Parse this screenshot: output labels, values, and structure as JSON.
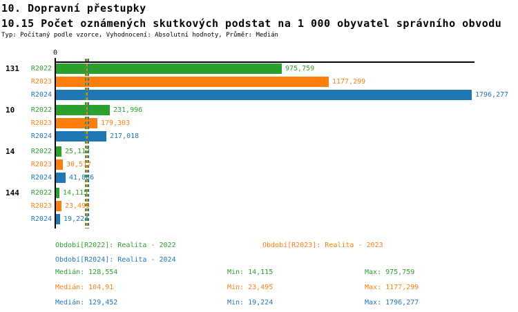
{
  "header": {
    "title": "10. Dopravní přestupky",
    "subtitle": "10.15 Počet oznámených skutkových podstat na 1 000 obyvatel správního obvodu",
    "meta": "Typ: Počítaný podle vzorce, Vyhodnocení: Absolutní hodnoty, Průměr: Medián"
  },
  "colors": {
    "r2022": "#2ca02c",
    "r2023": "#ff7f0e",
    "r2024": "#1f77b4",
    "axis": "#000000"
  },
  "chart_data": {
    "type": "bar",
    "orientation": "horizontal",
    "categories": [
      "131",
      "10",
      "14",
      "144"
    ],
    "series": [
      {
        "name": "R2022",
        "color": "#2ca02c",
        "values": [
          975.759,
          231.996,
          25.112,
          14.115
        ],
        "labels": [
          "975,759",
          "231,996",
          "25,112",
          "14,115"
        ]
      },
      {
        "name": "R2023",
        "color": "#ff7f0e",
        "values": [
          1177.299,
          179.303,
          30.517,
          23.495
        ],
        "labels": [
          "1177,299",
          "179,303",
          "30,517",
          "23,495"
        ]
      },
      {
        "name": "R2024",
        "color": "#1f77b4",
        "values": [
          1796.277,
          217.018,
          41.886,
          19.224
        ],
        "labels": [
          "1796,277",
          "217,018",
          "41,886",
          "19,224"
        ]
      }
    ],
    "x_axis": {
      "zero_label": "0",
      "min": 0,
      "max": 1796.277
    },
    "medians": [
      {
        "series": "R2022",
        "value": 128.554,
        "color": "#2ca02c"
      },
      {
        "series": "R2023",
        "value": 104.91,
        "color": "#ff7f0e"
      },
      {
        "series": "R2024",
        "value": 129.452,
        "color": "#1f77b4"
      }
    ],
    "grid": false,
    "legend_position": "bottom"
  },
  "legend": {
    "r2022": {
      "text": "Období[R2022]: Realita - 2022"
    },
    "r2023": {
      "text": "Období[R2023]: Realita - 2023"
    },
    "r2024": {
      "text": "Období[R2024]: Realita - 2024"
    }
  },
  "stats": {
    "rows": [
      {
        "series": "R2022",
        "cells": [
          "Medián: 128,554",
          "Min: 14,115",
          "Max: 975,759"
        ]
      },
      {
        "series": "R2023",
        "cells": [
          "Medián: 104,91",
          "Min: 23,495",
          "Max: 1177,299"
        ]
      },
      {
        "series": "R2024",
        "cells": [
          "Medián: 129,452",
          "Min: 19,224",
          "Max: 1796,277"
        ]
      }
    ]
  }
}
